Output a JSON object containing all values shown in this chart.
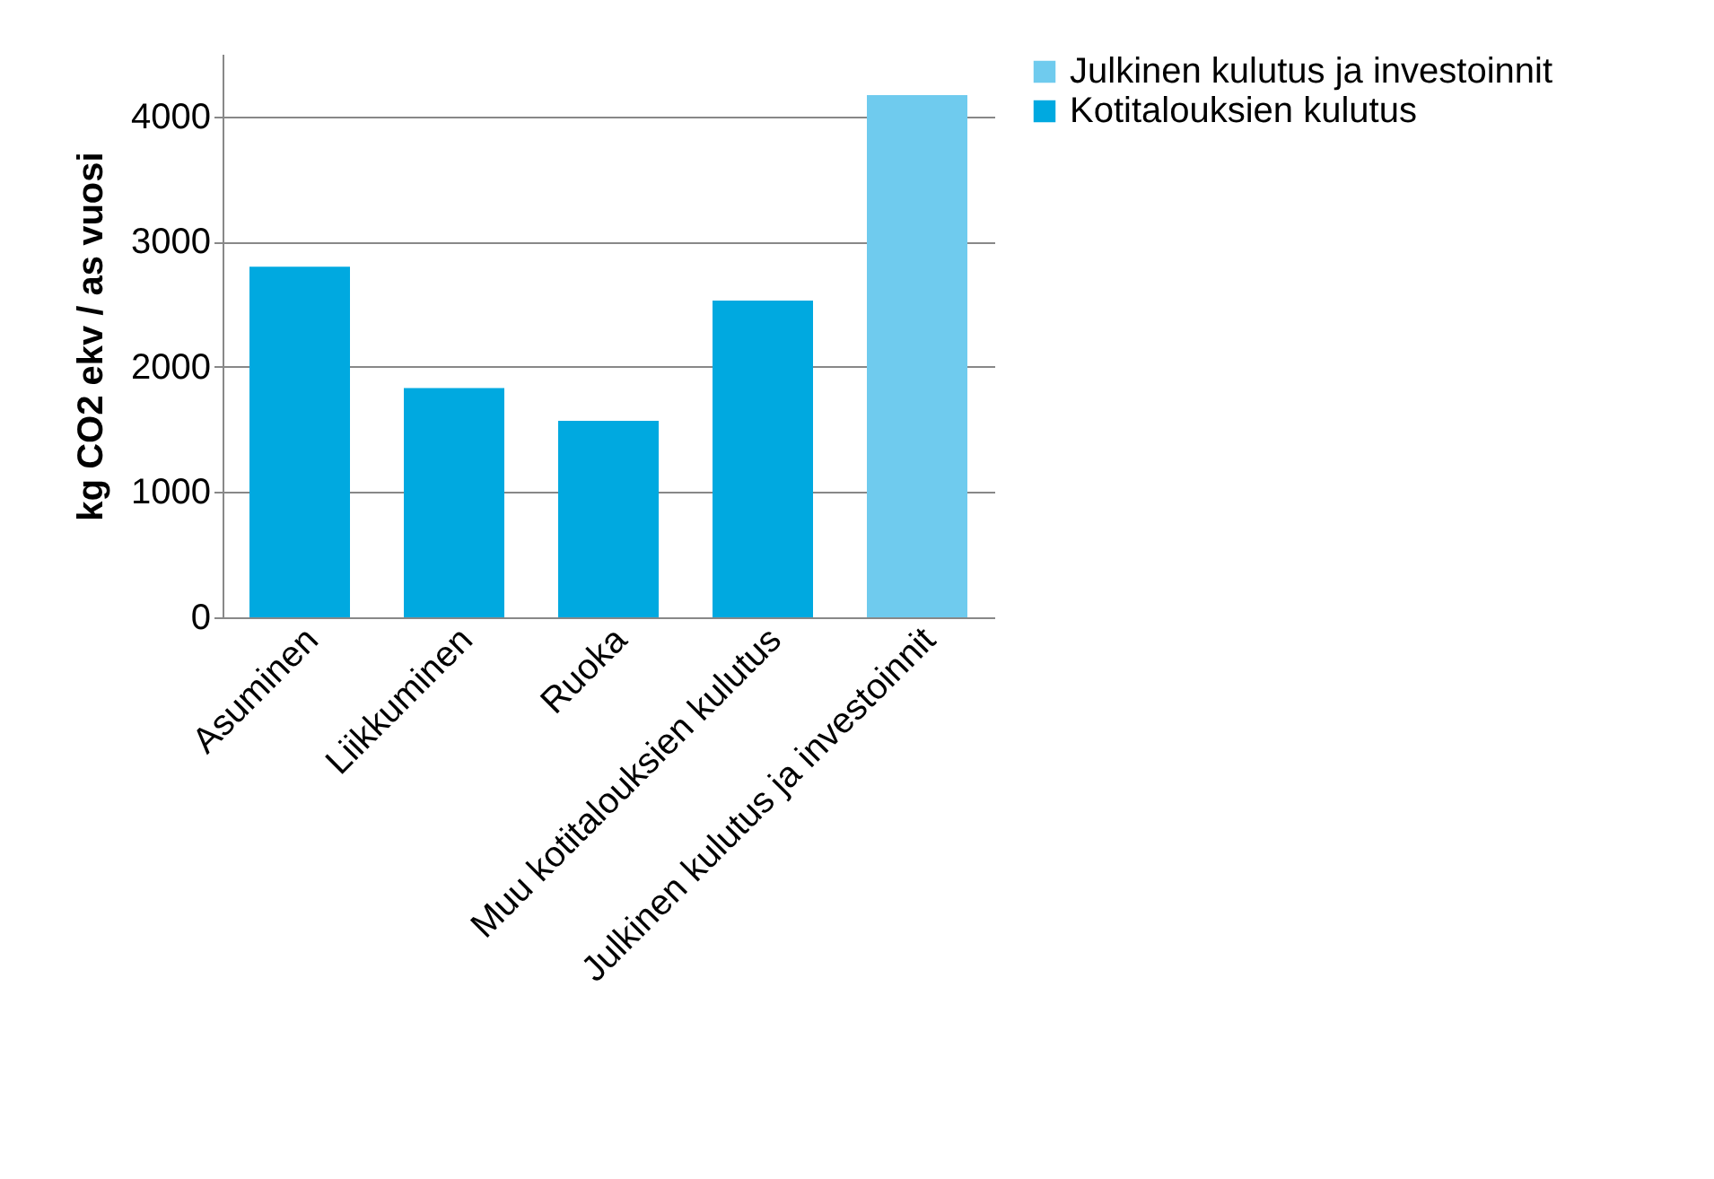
{
  "chart_data": {
    "type": "bar",
    "ylabel": "kg CO2 ekv / as vuosi",
    "categories": [
      "Asuminen",
      "Liikkuminen",
      "Ruoka",
      "Muu kotitalouksien kulutus",
      "Julkinen kulutus ja investoinnit"
    ],
    "series": [
      {
        "name": "Julkinen kulutus ja investoinnit",
        "color": "#6fcbee",
        "values": [
          null,
          null,
          null,
          null,
          4170
        ]
      },
      {
        "name": "Kotitalouksien kulutus",
        "color": "#00a9e0",
        "values": [
          2800,
          1830,
          1570,
          2530,
          null
        ]
      }
    ],
    "ylim": [
      0,
      4500
    ],
    "yticks": [
      0,
      1000,
      2000,
      3000,
      4000
    ],
    "grid": "y",
    "legend": "right"
  }
}
